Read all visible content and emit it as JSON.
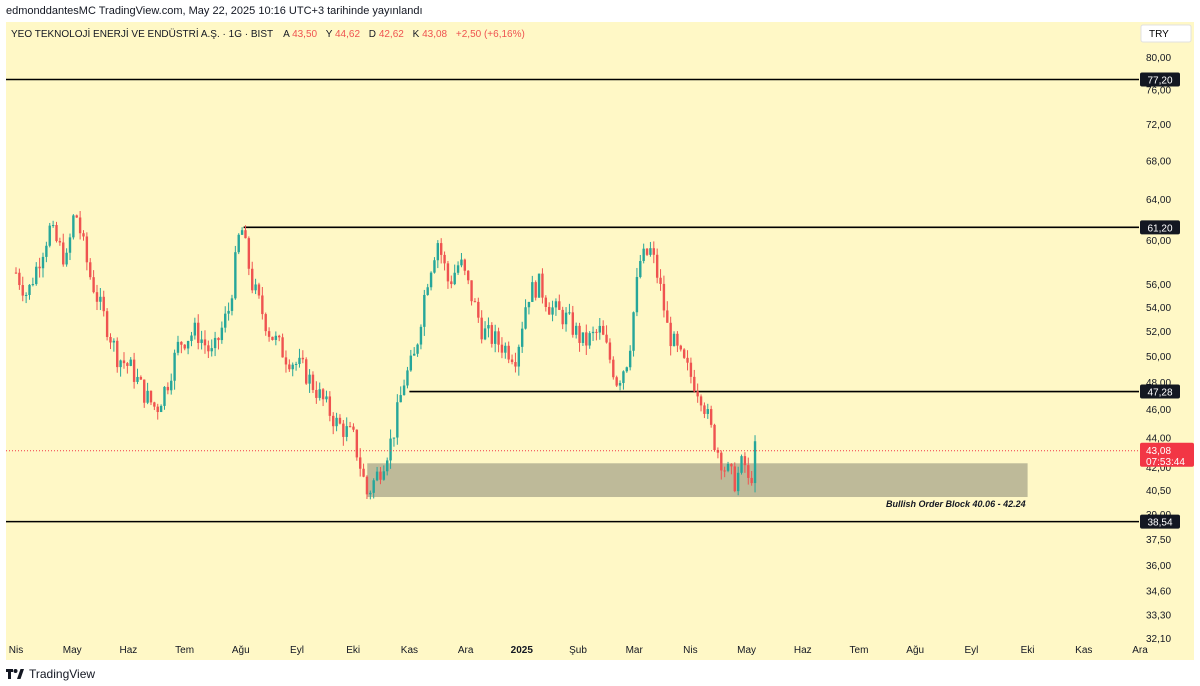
{
  "header": {
    "publish_line": "edmonddantesMC TradingView.com, May 22, 2025 10:16 UTC+3 tarihinde yayınlandı"
  },
  "legend": {
    "symbol": "YEO TEKNOLOJİ ENERJİ VE ENDÜSTRİ A.Ş. · 1G · BIST",
    "open_label": "A",
    "open": "43,50",
    "high_label": "Y",
    "high": "44,62",
    "low_label": "D",
    "low": "42,62",
    "close_label": "K",
    "close": "43,08",
    "change": "+2,50 (+6,16%)"
  },
  "currency": "TRY",
  "colors": {
    "background": "#fff8c6",
    "up": "#26a69a",
    "down": "#ef5350",
    "level": "#000000",
    "zone": "#a8a58a",
    "price_tag": "#f23645",
    "text": "#131722"
  },
  "chart_data": {
    "type": "candlestick",
    "y_scale": "log",
    "ylim": [
      31.5,
      84.5
    ],
    "x_months": [
      "Nis",
      "May",
      "Haz",
      "Tem",
      "Ağu",
      "Eyl",
      "Eki",
      "Kas",
      "Ara",
      "2025",
      "Şub",
      "Mar",
      "Nis",
      "May",
      "Haz",
      "Tem",
      "Ağu",
      "Eyl",
      "Eki",
      "Kas",
      "Ara"
    ],
    "x_month_bold_index": 9,
    "y_ticks": [
      "80,00",
      "76,00",
      "72,00",
      "68,00",
      "64,00",
      "60,00",
      "56,00",
      "54,00",
      "52,00",
      "50,00",
      "48,00",
      "46,00",
      "44,00",
      "42,00",
      "40,50",
      "39,00",
      "37,50",
      "36,00",
      "34,60",
      "33,30",
      "32,10"
    ],
    "y_tick_values": [
      80,
      76,
      72,
      68,
      64,
      60,
      56,
      54,
      52,
      50,
      48,
      46,
      44,
      42,
      40.5,
      39,
      37.5,
      36,
      34.6,
      33.3,
      32.1
    ],
    "levels": [
      {
        "value": 77.2,
        "label": "77,20",
        "from_month": -0.2
      },
      {
        "value": 61.2,
        "label": "61,20",
        "from_month": 4.05
      },
      {
        "value": 47.28,
        "label": "47,28",
        "from_month": 7.0
      },
      {
        "value": 38.54,
        "label": "38,54",
        "from_month": -0.2
      }
    ],
    "last_price": {
      "value": 43.08,
      "label": "43,08",
      "countdown": "07:53:44"
    },
    "zone": {
      "low": 40.06,
      "high": 42.24,
      "label": "Bullish Order Block 40.06 - 42.24",
      "from_month": 6.25,
      "to_month": 18.0
    },
    "price_path": [
      [
        0,
        57
      ],
      [
        0.2,
        55
      ],
      [
        0.6,
        61
      ],
      [
        0.9,
        58
      ],
      [
        1.05,
        63
      ],
      [
        1.3,
        57
      ],
      [
        1.5,
        54
      ],
      [
        1.8,
        50
      ],
      [
        2.05,
        49
      ],
      [
        2.3,
        47
      ],
      [
        2.5,
        46
      ],
      [
        2.7,
        48
      ],
      [
        2.9,
        51
      ],
      [
        3.2,
        52
      ],
      [
        3.5,
        50
      ],
      [
        3.8,
        54
      ],
      [
        4.0,
        61.5
      ],
      [
        4.2,
        56
      ],
      [
        4.5,
        52
      ],
      [
        4.8,
        50
      ],
      [
        5.1,
        49
      ],
      [
        5.4,
        47
      ],
      [
        5.7,
        45
      ],
      [
        6.0,
        44
      ],
      [
        6.25,
        40.2
      ],
      [
        6.5,
        42
      ],
      [
        6.7,
        44
      ],
      [
        6.9,
        48
      ],
      [
        7.1,
        50
      ],
      [
        7.3,
        56
      ],
      [
        7.5,
        60
      ],
      [
        7.7,
        56
      ],
      [
        7.9,
        58
      ],
      [
        8.1,
        55
      ],
      [
        8.3,
        52
      ],
      [
        8.6,
        51
      ],
      [
        8.9,
        50
      ],
      [
        9.1,
        55
      ],
      [
        9.3,
        56
      ],
      [
        9.5,
        54
      ],
      [
        9.8,
        53
      ],
      [
        10.1,
        51
      ],
      [
        10.4,
        52
      ],
      [
        10.7,
        48
      ],
      [
        10.9,
        50
      ],
      [
        11.1,
        58
      ],
      [
        11.3,
        59
      ],
      [
        11.45,
        56
      ],
      [
        11.6,
        52
      ],
      [
        11.8,
        50
      ],
      [
        12.0,
        48.5
      ],
      [
        12.2,
        47
      ],
      [
        12.4,
        44
      ],
      [
        12.6,
        42
      ],
      [
        12.8,
        41
      ],
      [
        12.95,
        42.5
      ],
      [
        13.05,
        40.5
      ],
      [
        13.15,
        43.08
      ]
    ]
  }
}
